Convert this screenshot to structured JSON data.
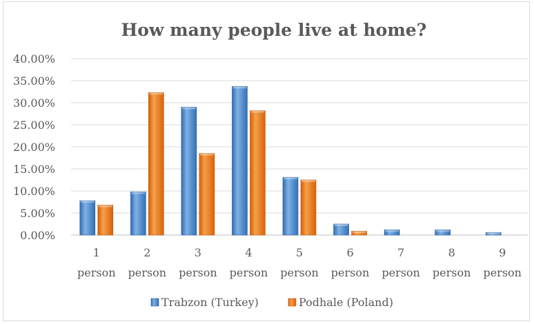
{
  "chart_data": {
    "type": "bar",
    "title": "How many people live at home?",
    "categories": [
      [
        "1",
        "person"
      ],
      [
        "2",
        "person"
      ],
      [
        "3",
        "person"
      ],
      [
        "4",
        "person"
      ],
      [
        "5",
        "person"
      ],
      [
        "6",
        "person"
      ],
      [
        "7",
        "person"
      ],
      [
        "8",
        "person"
      ],
      [
        "9",
        "person"
      ]
    ],
    "series": [
      {
        "name": "Trabzon (Turkey)",
        "color": "#4a86c8",
        "values": [
          7.8,
          9.8,
          29.0,
          33.7,
          13.1,
          2.5,
          1.2,
          1.2,
          0.6
        ]
      },
      {
        "name": "Podhale (Poland)",
        "color": "#e8720f",
        "values": [
          6.8,
          32.3,
          18.5,
          28.2,
          12.5,
          0.9,
          0,
          0,
          0
        ]
      }
    ],
    "ylim": [
      0,
      40
    ],
    "yticks": [
      "0.00%",
      "5.00%",
      "10.00%",
      "15.00%",
      "20.00%",
      "25.00%",
      "30.00%",
      "35.00%",
      "40.00%"
    ],
    "grid": true,
    "legend_position": "bottom"
  }
}
